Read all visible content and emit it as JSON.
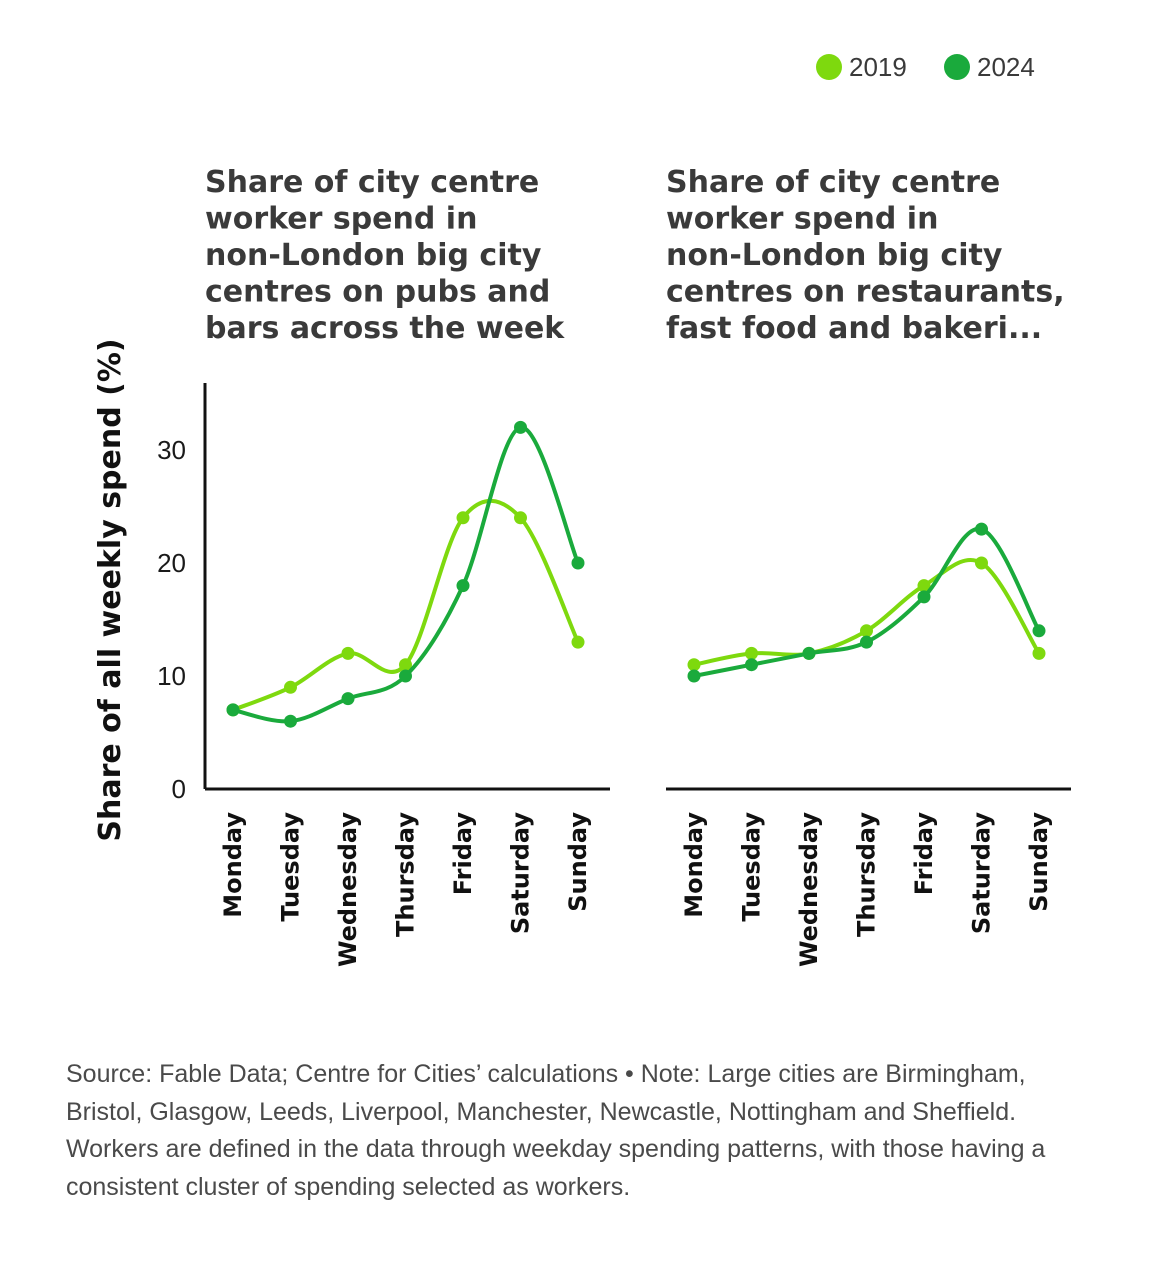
{
  "colors": {
    "2019": "#7ed90e",
    "2024": "#1aaa3c"
  },
  "legend": {
    "items": [
      {
        "label": "2019"
      },
      {
        "label": "2024"
      }
    ]
  },
  "ylabel": "Share of all weekly spend (%)",
  "chart_data": [
    {
      "type": "line",
      "title_lines": [
        "Share of city centre",
        "worker spend in",
        "non-London big city",
        "centres on pubs and",
        "bars across the week"
      ],
      "categories": [
        "Monday",
        "Tuesday",
        "Wednesday",
        "Thursday",
        "Friday",
        "Saturday",
        "Sunday"
      ],
      "series": [
        {
          "name": "2019",
          "values": [
            7,
            9,
            12,
            11,
            24,
            24,
            13
          ]
        },
        {
          "name": "2024",
          "values": [
            7,
            6,
            8,
            10,
            18,
            32,
            20
          ]
        }
      ],
      "ylabel": "Share of all weekly spend (%)",
      "ylim": [
        0,
        36
      ],
      "yticks": [
        0,
        10,
        20,
        30
      ],
      "grid": false,
      "legend": "top-right"
    },
    {
      "type": "line",
      "title_lines": [
        "Share of city centre",
        "worker spend in",
        "non-London big city",
        "centres on restaurants,",
        "fast food and bakeri..."
      ],
      "categories": [
        "Monday",
        "Tuesday",
        "Wednesday",
        "Thursday",
        "Friday",
        "Saturday",
        "Sunday"
      ],
      "series": [
        {
          "name": "2019",
          "values": [
            11,
            12,
            12,
            14,
            18,
            20,
            12
          ]
        },
        {
          "name": "2024",
          "values": [
            10,
            11,
            12,
            13,
            17,
            23,
            14
          ]
        }
      ],
      "ylim": [
        0,
        36
      ],
      "grid": false,
      "legend": "top-right"
    }
  ],
  "footer": {
    "note": "Source: Fable Data; Centre for Cities’ calculations • Note: Large cities are Birmingham, Bristol, Glasgow, Leeds, Liverpool, Manchester, Newcastle, Nottingham and Sheffield. Workers are defined in the data through weekday spending patterns, with those having a consistent cluster of spending selected as workers."
  }
}
